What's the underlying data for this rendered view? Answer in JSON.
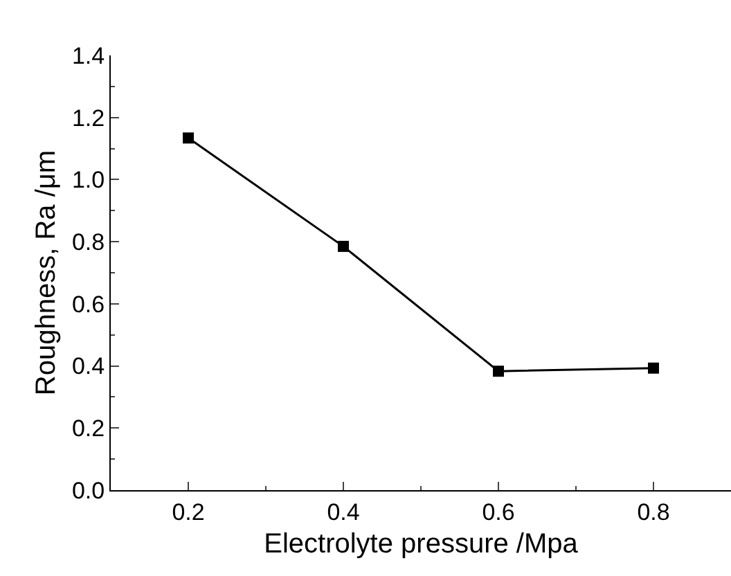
{
  "chart_data": {
    "type": "line",
    "xlabel": "Electrolyte pressure /Mpa",
    "ylabel": "Roughness, Ra /μm",
    "x": [
      0.2,
      0.4,
      0.6,
      0.8
    ],
    "series": [
      {
        "color": "#000000",
        "values": [
          1.134,
          0.785,
          0.383,
          0.393
        ]
      }
    ],
    "xlim": [
      0.1,
      0.9
    ],
    "xticks": [
      0.2,
      0.4,
      0.6,
      0.8
    ],
    "ylim": [
      0,
      1.4
    ],
    "yticks": [
      "0.0",
      0.2,
      0.4,
      0.6,
      0.8,
      "1.0",
      1.2,
      1.4
    ],
    "marker": "square",
    "line_style": "solid",
    "grid": false
  }
}
